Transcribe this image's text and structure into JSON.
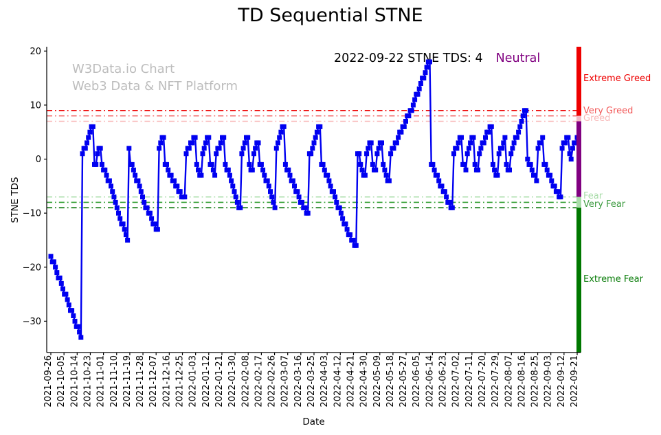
{
  "title": "TD Sequential STNE",
  "watermark": {
    "line1": "W3Data.io Chart",
    "line2": "Web3 Data & NFT Platform",
    "color": "#bdbdbd"
  },
  "annotation": {
    "text": "2022-09-22 STNE TDS: 4",
    "status": "Neutral",
    "status_color": "#800080"
  },
  "zones": [
    {
      "label": "Extreme Greed",
      "color": "#ee0000"
    },
    {
      "label": "Very Greed",
      "color": "#f25858"
    },
    {
      "label": "Greed",
      "color": "#f8b8b8"
    },
    {
      "label": "Fear",
      "color": "#a8dca8"
    },
    {
      "label": "Very Fear",
      "color": "#3d9b40"
    },
    {
      "label": "Extreme Fear",
      "color": "#0a7d0a"
    }
  ],
  "chart_data": {
    "type": "line",
    "title": "TD Sequential STNE",
    "xlabel": "Date",
    "ylabel": "STNE TDS",
    "ylim": [
      -35.8,
      20.8
    ],
    "grid": false,
    "y_ticks": [
      20,
      10,
      0,
      -10,
      -20,
      -30
    ],
    "x_tick_labels": [
      "2021-09-26",
      "2021-10-05",
      "2021-10-14",
      "2021-10-23",
      "2021-11-01",
      "2021-11-10",
      "2021-11-19",
      "2021-11-28",
      "2021-12-07",
      "2021-12-16",
      "2021-12-25",
      "2022-01-03",
      "2022-01-12",
      "2022-01-21",
      "2022-01-30",
      "2022-02-08",
      "2022-02-17",
      "2022-02-26",
      "2022-03-07",
      "2022-03-16",
      "2022-03-25",
      "2022-04-03",
      "2022-04-12",
      "2022-04-21",
      "2022-04-30",
      "2022-05-09",
      "2022-05-18",
      "2022-05-27",
      "2022-06-05",
      "2022-06-14",
      "2022-06-23",
      "2022-07-02",
      "2022-07-11",
      "2022-07-20",
      "2022-07-29",
      "2022-08-07",
      "2022-08-16",
      "2022-08-25",
      "2022-09-03",
      "2022-09-12",
      "2022-09-21"
    ],
    "guide_lines": [
      {
        "value": 9,
        "color": "#ee0000"
      },
      {
        "value": 8,
        "color": "#f05a5a"
      },
      {
        "value": 7,
        "color": "#f8b8b8"
      },
      {
        "value": -7,
        "color": "#a8dca8"
      },
      {
        "value": -8,
        "color": "#2f9e2f"
      },
      {
        "value": -9,
        "color": "#007000"
      }
    ],
    "sentiment_bar": [
      {
        "from": 8,
        "to": 20.8,
        "color": "#ee0000"
      },
      {
        "from": 7,
        "to": 8,
        "color": "#f4b8c4"
      },
      {
        "from": -7,
        "to": 7,
        "color": "#800080"
      },
      {
        "from": -9,
        "to": -7,
        "color": "#a8dca8"
      },
      {
        "from": -35.8,
        "to": -9,
        "color": "#007800"
      }
    ],
    "series": [
      {
        "name": "STNE TDS",
        "color": "#0000f0",
        "marker": "square",
        "values": [
          -18,
          -19,
          -19,
          -20,
          -21,
          -22,
          -22,
          -23,
          -24,
          -25,
          -25,
          -26,
          -27,
          -28,
          -28,
          -29,
          -30,
          -31,
          -31,
          -32,
          -33,
          1,
          2,
          2,
          3,
          4,
          5,
          6,
          6,
          -1,
          -1,
          1,
          2,
          2,
          -1,
          -2,
          -2,
          -3,
          -4,
          -4,
          -5,
          -6,
          -7,
          -8,
          -9,
          -10,
          -11,
          -12,
          -12,
          -13,
          -14,
          -15,
          2,
          -1,
          -1,
          -2,
          -3,
          -4,
          -4,
          -5,
          -6,
          -7,
          -8,
          -9,
          -9,
          -10,
          -10,
          -11,
          -12,
          -12,
          -13,
          -13,
          2,
          3,
          4,
          4,
          -1,
          -1,
          -2,
          -3,
          -3,
          -4,
          -4,
          -5,
          -5,
          -6,
          -6,
          -7,
          -7,
          -7,
          1,
          2,
          2,
          3,
          3,
          4,
          4,
          -1,
          -2,
          -3,
          -3,
          1,
          2,
          3,
          4,
          4,
          -1,
          -1,
          -2,
          -3,
          1,
          2,
          2,
          3,
          4,
          4,
          -1,
          -2,
          -2,
          -3,
          -4,
          -5,
          -6,
          -7,
          -8,
          -9,
          -9,
          1,
          2,
          3,
          4,
          4,
          -1,
          -2,
          -2,
          1,
          2,
          3,
          3,
          -1,
          -1,
          -2,
          -3,
          -4,
          -4,
          -5,
          -6,
          -7,
          -8,
          -9,
          2,
          3,
          4,
          5,
          6,
          6,
          -1,
          -2,
          -2,
          -3,
          -4,
          -4,
          -5,
          -6,
          -6,
          -7,
          -8,
          -8,
          -9,
          -9,
          -10,
          -10,
          1,
          1,
          2,
          3,
          4,
          5,
          6,
          6,
          -1,
          -1,
          -2,
          -3,
          -3,
          -4,
          -5,
          -6,
          -6,
          -7,
          -8,
          -9,
          -9,
          -10,
          -11,
          -12,
          -12,
          -13,
          -14,
          -14,
          -15,
          -15,
          -16,
          -16,
          1,
          1,
          -1,
          -2,
          -3,
          -3,
          1,
          2,
          3,
          3,
          -1,
          -2,
          -2,
          1,
          2,
          3,
          3,
          -1,
          -2,
          -3,
          -4,
          -4,
          1,
          2,
          2,
          3,
          3,
          4,
          5,
          5,
          6,
          6,
          7,
          8,
          8,
          9,
          9,
          10,
          11,
          12,
          12,
          13,
          14,
          15,
          15,
          16,
          17,
          18,
          18,
          -1,
          -1,
          -2,
          -3,
          -3,
          -4,
          -5,
          -5,
          -6,
          -6,
          -7,
          -8,
          -8,
          -9,
          -9,
          1,
          2,
          2,
          3,
          4,
          4,
          -1,
          -1,
          -2,
          1,
          2,
          3,
          4,
          4,
          -1,
          -2,
          -2,
          1,
          2,
          3,
          3,
          4,
          5,
          5,
          6,
          6,
          -1,
          -2,
          -3,
          -3,
          1,
          2,
          2,
          3,
          4,
          -1,
          -2,
          -2,
          1,
          2,
          3,
          4,
          4,
          5,
          6,
          7,
          8,
          9,
          9,
          0,
          -1,
          -1,
          -2,
          -3,
          -3,
          -4,
          2,
          3,
          3,
          4,
          -1,
          -1,
          -2,
          -3,
          -3,
          -4,
          -5,
          -5,
          -6,
          -6,
          -7,
          -7,
          2,
          3,
          3,
          4,
          4,
          1,
          0,
          2,
          3,
          3,
          4
        ]
      }
    ]
  }
}
